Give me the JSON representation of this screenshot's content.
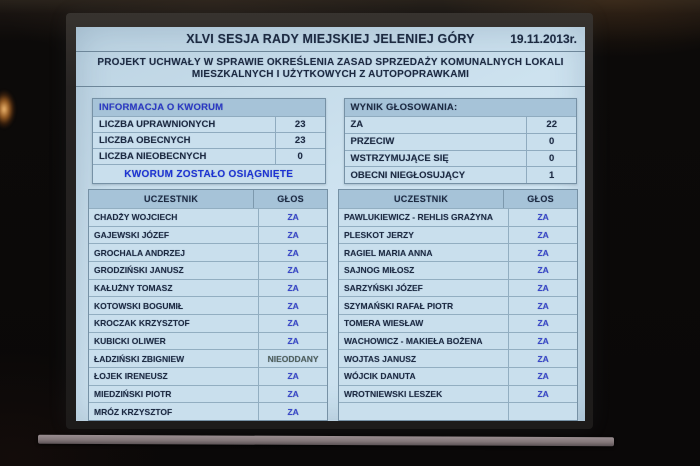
{
  "header": {
    "session_title": "XLVI SESJA RADY MIEJSKIEJ JELENIEJ GÓRY",
    "date": "19.11.2013r.",
    "subject_line1": "PROJEKT UCHWAŁY W SPRAWIE OKREŚLENIA ZASAD SPRZEDAŻY KOMUNALNYCH LOKALI",
    "subject_line2": "MIESZKALNYCH I UŻYTKOWYCH Z AUTOPOPRAWKAMI"
  },
  "quorum_panel": {
    "title": "INFORMACJA O KWORUM",
    "rows": [
      {
        "label": "LICZBA UPRAWNIONYCH",
        "value": "23"
      },
      {
        "label": "LICZBA OBECNYCH",
        "value": "23"
      },
      {
        "label": "LICZBA NIEOBECNYCH",
        "value": "0"
      }
    ],
    "footer": "KWORUM ZOSTAŁO OSIĄGNIĘTE"
  },
  "results_panel": {
    "title": "WYNIK GŁOSOWANIA:",
    "rows": [
      {
        "label": "ZA",
        "value": "22"
      },
      {
        "label": "PRZECIW",
        "value": "0"
      },
      {
        "label": "WSTRZYMUJĄCE SIĘ",
        "value": "0"
      },
      {
        "label": "OBECNI NIEGŁOSUJĄCY",
        "value": "1"
      }
    ]
  },
  "participants": {
    "headers": {
      "name": "UCZESTNIK",
      "vote": "GŁOS"
    },
    "left": [
      {
        "name": "CHADŻY WOJCIECH",
        "vote": "ZA"
      },
      {
        "name": "GAJEWSKI JÓZEF",
        "vote": "ZA"
      },
      {
        "name": "GROCHALA ANDRZEJ",
        "vote": "ZA"
      },
      {
        "name": "GRODZIŃSKI JANUSZ",
        "vote": "ZA"
      },
      {
        "name": "KAŁUŻNY TOMASZ",
        "vote": "ZA"
      },
      {
        "name": "KOTOWSKI BOGUMIŁ",
        "vote": "ZA"
      },
      {
        "name": "KROCZAK KRZYSZTOF",
        "vote": "ZA"
      },
      {
        "name": "KUBICKI OLIWER",
        "vote": "ZA"
      },
      {
        "name": "ŁADZIŃSKI ZBIGNIEW",
        "vote": "NIEODDANY"
      },
      {
        "name": "ŁOJEK IRENEUSZ",
        "vote": "ZA"
      },
      {
        "name": "MIEDZIŃSKI PIOTR",
        "vote": "ZA"
      },
      {
        "name": "MRÓZ KRZYSZTOF",
        "vote": "ZA"
      }
    ],
    "right": [
      {
        "name": "PAWLUKIEWICZ - REHLIS GRAŻYNA",
        "vote": "ZA"
      },
      {
        "name": "PLESKOT JERZY",
        "vote": "ZA"
      },
      {
        "name": "RAGIEL MARIA ANNA",
        "vote": "ZA"
      },
      {
        "name": "SAJNOG MIŁOSZ",
        "vote": "ZA"
      },
      {
        "name": "SARZYŃSKI JÓZEF",
        "vote": "ZA"
      },
      {
        "name": "SZYMAŃSKI RAFAŁ PIOTR",
        "vote": "ZA"
      },
      {
        "name": "TOMERA WIESŁAW",
        "vote": "ZA"
      },
      {
        "name": "WACHOWICZ - MAKIEŁA BOŻENA",
        "vote": "ZA"
      },
      {
        "name": "WOJTAS JANUSZ",
        "vote": "ZA"
      },
      {
        "name": "WÓJCIK DANUTA",
        "vote": "ZA"
      },
      {
        "name": "WROTNIEWSKI LESZEK",
        "vote": "ZA"
      },
      {
        "name": "",
        "vote": ""
      }
    ]
  },
  "colors": {
    "navy_text": "#1d2a40",
    "blue_text": "#2b38c4",
    "bright_blue": "#1d33d4",
    "header_band": "#a6c3d8",
    "vote_za": "#3947c9",
    "vote_nieoddany": "#50605b"
  }
}
